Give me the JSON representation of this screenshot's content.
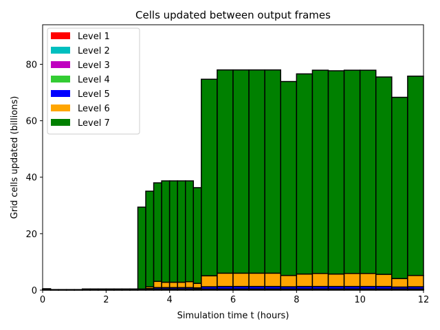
{
  "chart_data": {
    "type": "bar",
    "stacked": true,
    "title": "Cells updated between output frames",
    "xlabel": "Simulation time t (hours)",
    "ylabel": "Grid cells updated (billions)",
    "xlim": [
      0,
      12
    ],
    "ylim": [
      0,
      94
    ],
    "xticks": [
      0,
      2,
      4,
      6,
      8,
      10,
      12
    ],
    "yticks": [
      0,
      20,
      40,
      60,
      80
    ],
    "grid": false,
    "legend_position": "top-left",
    "bins": [
      {
        "t0": 0.0,
        "t1": 0.25
      },
      {
        "t0": 0.25,
        "t1": 0.5
      },
      {
        "t0": 0.5,
        "t1": 0.75
      },
      {
        "t0": 0.75,
        "t1": 1.0
      },
      {
        "t0": 1.0,
        "t1": 1.25
      },
      {
        "t0": 1.25,
        "t1": 1.5
      },
      {
        "t0": 1.5,
        "t1": 1.75
      },
      {
        "t0": 1.75,
        "t1": 2.0
      },
      {
        "t0": 2.0,
        "t1": 2.25
      },
      {
        "t0": 2.25,
        "t1": 2.5
      },
      {
        "t0": 2.5,
        "t1": 2.75
      },
      {
        "t0": 2.75,
        "t1": 3.0
      },
      {
        "t0": 3.0,
        "t1": 3.25
      },
      {
        "t0": 3.25,
        "t1": 3.5
      },
      {
        "t0": 3.5,
        "t1": 3.75
      },
      {
        "t0": 3.75,
        "t1": 4.0
      },
      {
        "t0": 4.0,
        "t1": 4.25
      },
      {
        "t0": 4.25,
        "t1": 4.5
      },
      {
        "t0": 4.5,
        "t1": 4.75
      },
      {
        "t0": 4.75,
        "t1": 5.0
      },
      {
        "t0": 5.0,
        "t1": 5.5
      },
      {
        "t0": 5.5,
        "t1": 6.0
      },
      {
        "t0": 6.0,
        "t1": 6.5
      },
      {
        "t0": 6.5,
        "t1": 7.0
      },
      {
        "t0": 7.0,
        "t1": 7.5
      },
      {
        "t0": 7.5,
        "t1": 8.0
      },
      {
        "t0": 8.0,
        "t1": 8.5
      },
      {
        "t0": 8.5,
        "t1": 9.0
      },
      {
        "t0": 9.0,
        "t1": 9.5
      },
      {
        "t0": 9.5,
        "t1": 10.0
      },
      {
        "t0": 10.0,
        "t1": 10.5
      },
      {
        "t0": 10.5,
        "t1": 11.0
      },
      {
        "t0": 11.0,
        "t1": 11.5
      },
      {
        "t0": 11.5,
        "t1": 12.0
      }
    ],
    "series": [
      {
        "name": "Level 1",
        "color": "#ff0000",
        "values": [
          0.05,
          0.03,
          0.03,
          0.03,
          0.03,
          0.03,
          0.03,
          0.03,
          0.03,
          0.03,
          0.03,
          0.03,
          0.05,
          0.05,
          0.05,
          0.05,
          0.05,
          0.05,
          0.05,
          0.05,
          0.05,
          0.05,
          0.05,
          0.05,
          0.05,
          0.05,
          0.05,
          0.05,
          0.05,
          0.05,
          0.05,
          0.05,
          0.05,
          0.05
        ]
      },
      {
        "name": "Level 2",
        "color": "#00bfbf",
        "values": [
          0.1,
          0.05,
          0.05,
          0.05,
          0.05,
          0.08,
          0.08,
          0.08,
          0.08,
          0.08,
          0.08,
          0.08,
          0.1,
          0.1,
          0.1,
          0.1,
          0.1,
          0.1,
          0.1,
          0.1,
          0.1,
          0.1,
          0.1,
          0.1,
          0.1,
          0.1,
          0.1,
          0.1,
          0.1,
          0.1,
          0.1,
          0.1,
          0.1,
          0.1
        ]
      },
      {
        "name": "Level 3",
        "color": "#bf00bf",
        "values": [
          0.1,
          0.05,
          0.05,
          0.05,
          0.05,
          0.1,
          0.1,
          0.1,
          0.1,
          0.1,
          0.1,
          0.1,
          0.1,
          0.1,
          0.1,
          0.1,
          0.1,
          0.1,
          0.1,
          0.1,
          0.1,
          0.1,
          0.1,
          0.1,
          0.1,
          0.1,
          0.1,
          0.1,
          0.1,
          0.1,
          0.1,
          0.1,
          0.1,
          0.1
        ]
      },
      {
        "name": "Level 4",
        "color": "#33cc33",
        "values": [
          0.15,
          0.05,
          0.05,
          0.05,
          0.05,
          0.15,
          0.15,
          0.15,
          0.15,
          0.15,
          0.15,
          0.15,
          0.1,
          0.1,
          0.15,
          0.15,
          0.15,
          0.15,
          0.15,
          0.15,
          0.15,
          0.15,
          0.15,
          0.15,
          0.15,
          0.15,
          0.15,
          0.15,
          0.15,
          0.15,
          0.15,
          0.15,
          0.15,
          0.15
        ]
      },
      {
        "name": "Level 5",
        "color": "#0000ff",
        "values": [
          0.1,
          0.02,
          0.02,
          0.02,
          0.02,
          0.04,
          0.04,
          0.04,
          0.04,
          0.04,
          0.04,
          0.04,
          0.05,
          0.2,
          0.5,
          0.5,
          0.5,
          0.5,
          0.5,
          0.4,
          0.8,
          0.9,
          0.9,
          0.9,
          0.9,
          0.8,
          0.9,
          0.9,
          0.9,
          0.9,
          0.9,
          0.9,
          0.7,
          0.8
        ]
      },
      {
        "name": "Level 6",
        "color": "#ffa500",
        "values": [
          0.0,
          0.0,
          0.0,
          0.0,
          0.0,
          0.0,
          0.0,
          0.0,
          0.0,
          0.0,
          0.0,
          0.0,
          0.0,
          0.6,
          2.2,
          1.9,
          1.9,
          1.9,
          2.1,
          1.6,
          3.9,
          4.7,
          4.7,
          4.7,
          4.7,
          4.0,
          4.4,
          4.6,
          4.4,
          4.6,
          4.6,
          4.3,
          3.0,
          4.0
        ]
      },
      {
        "name": "Level 7",
        "color": "#008000",
        "values": [
          0.0,
          0.0,
          0.0,
          0.0,
          0.0,
          0.0,
          0.0,
          0.0,
          0.0,
          0.0,
          0.0,
          0.0,
          29.0,
          33.9,
          34.9,
          35.9,
          35.9,
          35.9,
          35.7,
          33.9,
          69.6,
          72.0,
          72.0,
          72.0,
          72.0,
          68.7,
          70.9,
          72.0,
          72.0,
          72.0,
          72.0,
          69.9,
          64.2,
          70.6
        ]
      }
    ]
  }
}
